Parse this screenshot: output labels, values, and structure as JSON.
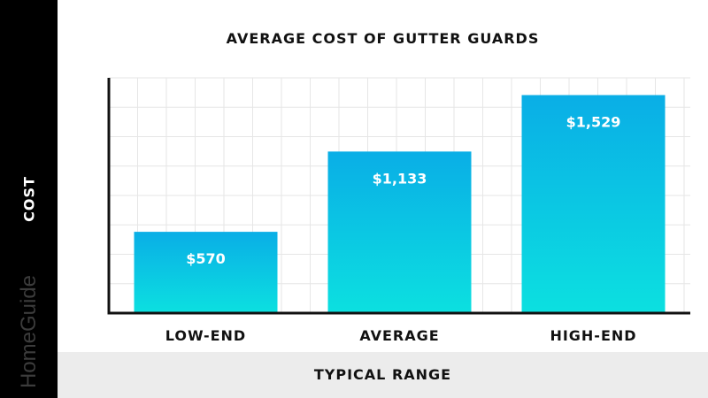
{
  "brand": "HomeGuide",
  "colors": {
    "bar_top": "#0aaee6",
    "bar_bottom": "#0ce0e0",
    "grid": "#e6e6e6",
    "axis": "#111111",
    "sidebar": "#000000",
    "footer": "#ececec"
  },
  "chart_data": {
    "type": "bar",
    "title": "AVERAGE COST OF GUTTER GUARDS",
    "xlabel": "TYPICAL RANGE",
    "ylabel": "COST",
    "categories": [
      "LOW-END",
      "AVERAGE",
      "HIGH-END"
    ],
    "values": [
      570,
      1133,
      1529
    ],
    "value_labels": [
      "$570",
      "$1,133",
      "$1,529"
    ],
    "ylim": [
      0,
      1650
    ],
    "grid": true,
    "legend": "none"
  }
}
